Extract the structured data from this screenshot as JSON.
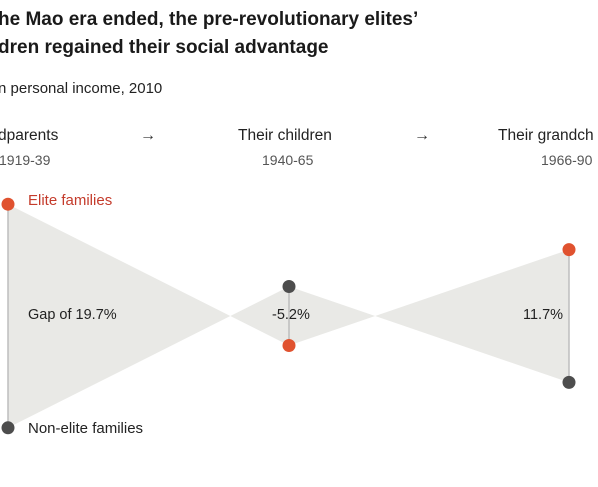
{
  "header": {
    "title_line1": "he Mao era ended, the pre-revolutionary elites’",
    "title_line2": "dren regained their social advantage",
    "subtitle": "n personal income, 2010"
  },
  "generations": [
    {
      "label": "dparents",
      "years": "1919-39"
    },
    {
      "label": "Their children",
      "years": "1940-65"
    },
    {
      "label": "Their grandch",
      "years": "1966-90"
    }
  ],
  "arrow_glyph": "→",
  "legend": {
    "elite": "Elite families",
    "non_elite": "Non-elite families"
  },
  "colors": {
    "elite": "#e0522f",
    "non_elite": "#4d4d4d",
    "band": "#e9e9e6",
    "line": "#bdbdbd"
  },
  "chart_data": {
    "type": "line",
    "x": [
      "1919-39",
      "1940-65",
      "1966-90"
    ],
    "series": [
      {
        "name": "Elite families",
        "values": [
          19.7,
          -5.2,
          11.7
        ]
      },
      {
        "name": "Non-elite families",
        "values": [
          0,
          0,
          0
        ]
      }
    ],
    "gap_labels": [
      "Gap of 19.7%",
      "-5.2%",
      "11.7%"
    ],
    "gaps": [
      19.7,
      -5.2,
      11.7
    ]
  }
}
